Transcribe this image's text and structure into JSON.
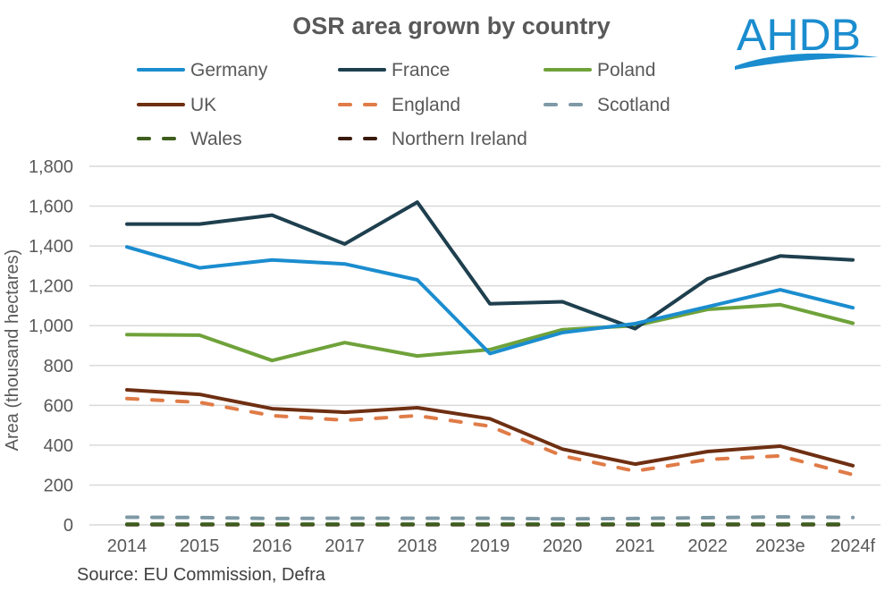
{
  "chart_data": {
    "type": "line",
    "title": "OSR area grown by country",
    "ylabel": "Area (thousand hectares)",
    "xlabel": "",
    "ylim": [
      0,
      1800
    ],
    "yticks": [
      0,
      200,
      400,
      600,
      800,
      1000,
      1200,
      1400,
      1600,
      1800
    ],
    "ytick_labels": [
      "0",
      "200",
      "400",
      "600",
      "800",
      "1,000",
      "1,200",
      "1,400",
      "1,600",
      "1,800"
    ],
    "categories": [
      "2014",
      "2015",
      "2016",
      "2017",
      "2018",
      "2019",
      "2020",
      "2021",
      "2022",
      "2023e",
      "2024f"
    ],
    "grid": "horizontal",
    "legend_placement": "top",
    "series": [
      {
        "name": "Germany",
        "color": "#1B8DCF",
        "dash": false,
        "values": [
          1395,
          1290,
          1330,
          1310,
          1230,
          860,
          965,
          1010,
          1095,
          1180,
          1090
        ]
      },
      {
        "name": "France",
        "color": "#1E3F4E",
        "dash": false,
        "values": [
          1510,
          1510,
          1555,
          1410,
          1620,
          1110,
          1120,
          985,
          1235,
          1350,
          1330
        ]
      },
      {
        "name": "Poland",
        "color": "#6FA23A",
        "dash": false,
        "values": [
          955,
          952,
          825,
          915,
          848,
          880,
          980,
          1000,
          1082,
          1105,
          1012
        ]
      },
      {
        "name": "UK",
        "color": "#6E2F12",
        "dash": false,
        "values": [
          678,
          655,
          583,
          565,
          588,
          533,
          380,
          305,
          368,
          395,
          297
        ]
      },
      {
        "name": "England",
        "color": "#E07B47",
        "dash": true,
        "values": [
          634,
          615,
          548,
          525,
          548,
          495,
          346,
          270,
          328,
          346,
          252
        ]
      },
      {
        "name": "Scotland",
        "color": "#7F99A6",
        "dash": true,
        "values": [
          38,
          37,
          32,
          33,
          33,
          33,
          30,
          32,
          36,
          40,
          37
        ]
      },
      {
        "name": "Wales",
        "color": "#3E5E1E",
        "dash": true,
        "values": [
          3,
          3,
          3,
          3,
          3,
          3,
          3,
          3,
          3,
          3,
          3
        ]
      },
      {
        "name": "Northern Ireland",
        "color": "#3A1A0A",
        "dash": true,
        "values": [
          1,
          1,
          1,
          1,
          1,
          1,
          1,
          1,
          1,
          1,
          1
        ]
      }
    ],
    "source": "Source: EU Commission, Defra"
  },
  "logo": {
    "text": "AHDB",
    "color": "#1B8DCF"
  }
}
